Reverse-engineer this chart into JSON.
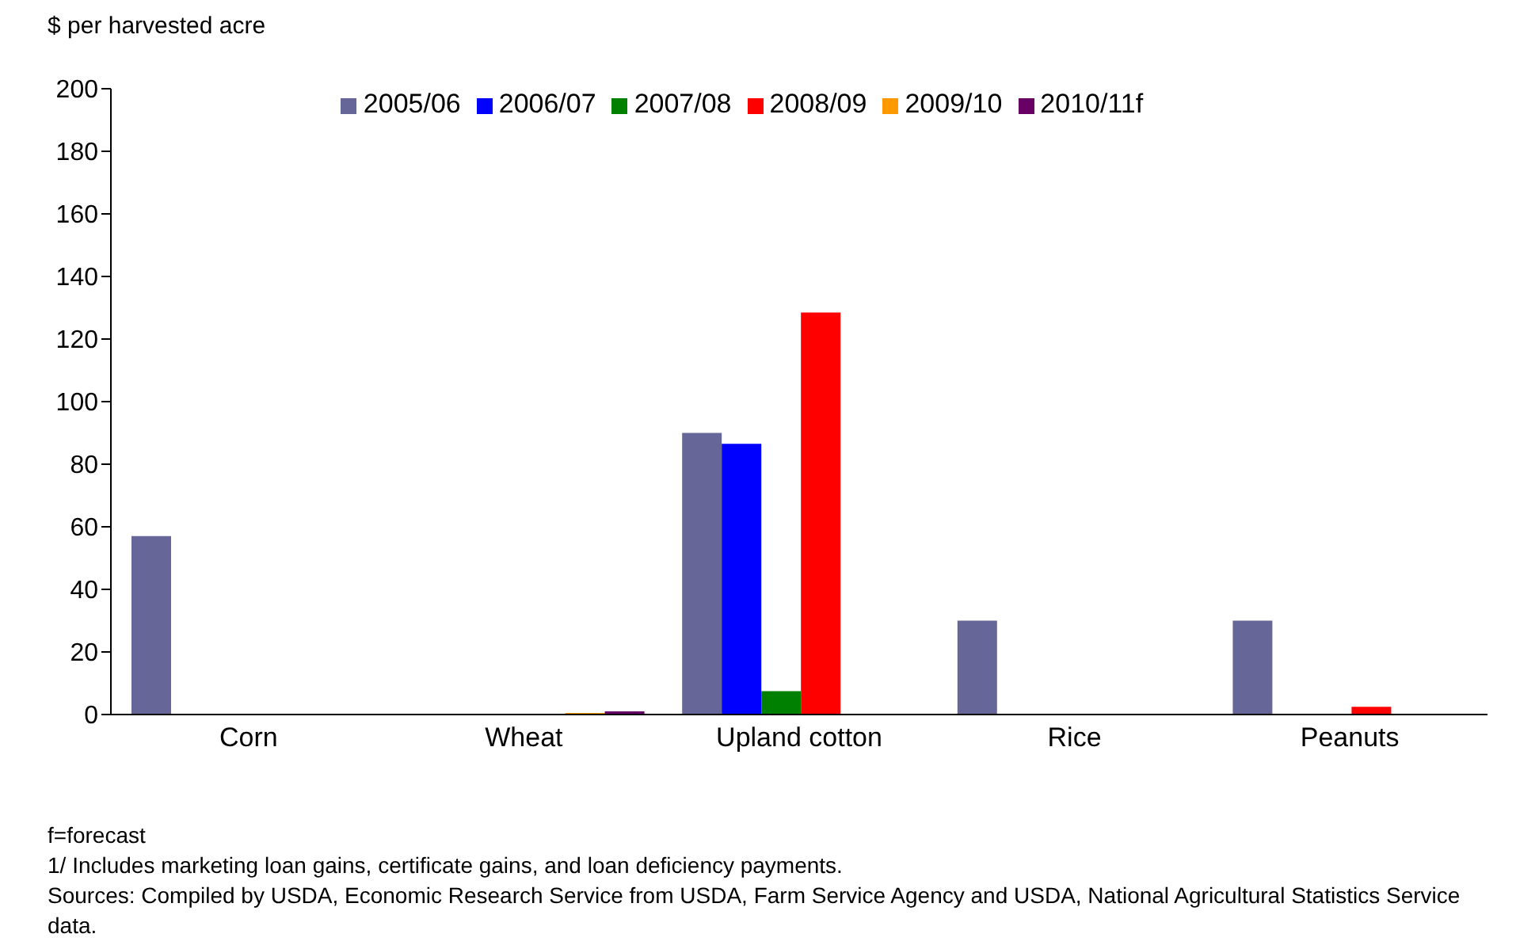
{
  "chart_data": {
    "type": "bar",
    "ylabel": "$ per harvested acre",
    "categories": [
      "Corn",
      "Wheat",
      "Upland cotton",
      "Rice",
      "Peanuts"
    ],
    "series": [
      {
        "name": "2005/06",
        "color": "#666699",
        "values": [
          57,
          0,
          90,
          30,
          30
        ]
      },
      {
        "name": "2006/07",
        "color": "#0000ff",
        "values": [
          0,
          0,
          86.5,
          0,
          0
        ]
      },
      {
        "name": "2007/08",
        "color": "#008000",
        "values": [
          0,
          0,
          7.5,
          0,
          0
        ]
      },
      {
        "name": "2008/09",
        "color": "#ff0000",
        "values": [
          0,
          0,
          128.5,
          0,
          2.5
        ]
      },
      {
        "name": "2009/10",
        "color": "#ff9900",
        "values": [
          0,
          0.5,
          0,
          0,
          0
        ]
      },
      {
        "name": "2010/11f",
        "color": "#660066",
        "values": [
          0,
          1,
          0,
          0,
          0
        ]
      }
    ],
    "ylim": [
      0,
      200
    ],
    "yticks": [
      0,
      20,
      40,
      60,
      80,
      100,
      120,
      140,
      160,
      180,
      200
    ],
    "grid": false,
    "legend": "top",
    "annotations": [
      "f=forecast",
      "1/ Includes marketing loan gains, certificate gains, and loan deficiency payments.",
      "Sources: Compiled by USDA, Economic Research Service from USDA, Farm Service Agency and USDA, National Agricultural Statistics Service data."
    ]
  }
}
